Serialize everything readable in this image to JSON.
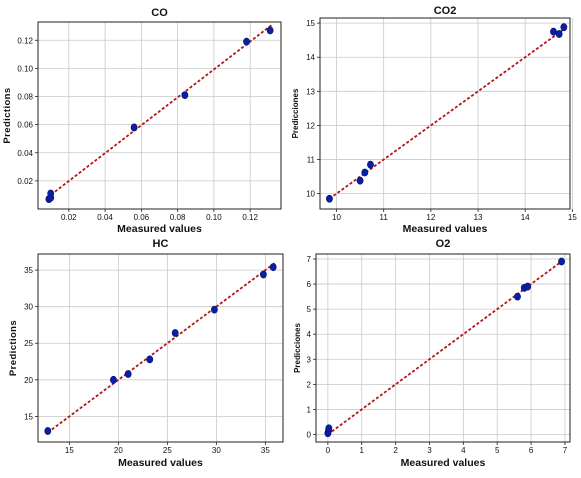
{
  "chart_data": [
    {
      "type": "scatter",
      "title": "CO",
      "xlabel": "Measured values",
      "ylabel": "Predictions",
      "xlim": [
        0.003,
        0.137
      ],
      "ylim": [
        0.0,
        0.133
      ],
      "xticks": [
        0.02,
        0.04,
        0.06,
        0.08,
        0.1,
        0.12
      ],
      "xtick_labels": [
        "0.02",
        "0.04",
        "0.06",
        "0.08",
        "0.10",
        "0.12"
      ],
      "yticks": [
        0.02,
        0.04,
        0.06,
        0.08,
        0.1,
        0.12
      ],
      "ytick_labels": [
        "0.02",
        "0.04",
        "0.06",
        "0.08",
        "0.10",
        "0.12"
      ],
      "grid": true,
      "fit_line": [
        [
          0.008,
          0.008
        ],
        [
          0.132,
          0.131
        ]
      ],
      "points": [
        [
          0.009,
          0.007
        ],
        [
          0.01,
          0.008
        ],
        [
          0.01,
          0.011
        ],
        [
          0.056,
          0.058
        ],
        [
          0.084,
          0.081
        ],
        [
          0.118,
          0.119
        ],
        [
          0.131,
          0.127
        ]
      ]
    },
    {
      "type": "scatter",
      "title": "CO2",
      "xlabel": "Measured values",
      "ylabel": "Predicciones",
      "xlim": [
        9.65,
        14.95
      ],
      "ylim": [
        9.55,
        15.15
      ],
      "xticks": [
        10,
        11,
        12,
        13,
        14,
        15
      ],
      "xtick_labels": [
        "10",
        "11",
        "12",
        "13",
        "14",
        "15"
      ],
      "yticks": [
        10,
        11,
        12,
        13,
        14,
        15
      ],
      "ytick_labels": [
        "10",
        "11",
        "12",
        "13",
        "14",
        "15"
      ],
      "grid": true,
      "fit_line": [
        [
          9.85,
          9.85
        ],
        [
          14.85,
          14.85
        ]
      ],
      "points": [
        [
          9.85,
          9.85
        ],
        [
          10.5,
          10.38
        ],
        [
          10.6,
          10.62
        ],
        [
          10.72,
          10.85
        ],
        [
          14.6,
          14.75
        ],
        [
          14.72,
          14.68
        ],
        [
          14.82,
          14.88
        ]
      ]
    },
    {
      "type": "scatter",
      "title": "HC",
      "xlabel": "Measured values",
      "ylabel": "Predictions",
      "xlim": [
        11.8,
        36.8
      ],
      "ylim": [
        11.5,
        37.2
      ],
      "xticks": [
        15,
        20,
        25,
        30,
        35
      ],
      "xtick_labels": [
        "15",
        "20",
        "25",
        "30",
        "35"
      ],
      "yticks": [
        15,
        20,
        25,
        30,
        35
      ],
      "ytick_labels": [
        "15",
        "20",
        "25",
        "30",
        "35"
      ],
      "grid": true,
      "fit_line": [
        [
          12.8,
          12.8
        ],
        [
          36.0,
          36.0
        ]
      ],
      "points": [
        [
          12.8,
          13.0
        ],
        [
          19.5,
          20.0
        ],
        [
          21.0,
          20.8
        ],
        [
          23.2,
          22.8
        ],
        [
          25.8,
          26.4
        ],
        [
          29.8,
          29.6
        ],
        [
          34.8,
          34.4
        ],
        [
          35.8,
          35.4
        ]
      ]
    },
    {
      "type": "scatter",
      "title": "O2",
      "xlabel": "Measured values",
      "ylabel": "Predicciones",
      "xlim": [
        -0.35,
        7.15
      ],
      "ylim": [
        -0.3,
        7.2
      ],
      "xticks": [
        0,
        1,
        2,
        3,
        4,
        5,
        6,
        7
      ],
      "xtick_labels": [
        "0",
        "1",
        "2",
        "3",
        "4",
        "5",
        "6",
        "7"
      ],
      "yticks": [
        0,
        1,
        2,
        3,
        4,
        5,
        6,
        7
      ],
      "ytick_labels": [
        "0",
        "1",
        "2",
        "3",
        "4",
        "5",
        "6",
        "7"
      ],
      "grid": true,
      "fit_line": [
        [
          0.0,
          0.0
        ],
        [
          6.9,
          6.9
        ]
      ],
      "points": [
        [
          0.0,
          0.05
        ],
        [
          0.02,
          0.15
        ],
        [
          0.03,
          0.25
        ],
        [
          5.6,
          5.5
        ],
        [
          5.8,
          5.85
        ],
        [
          5.9,
          5.9
        ],
        [
          6.9,
          6.9
        ]
      ]
    }
  ],
  "colors": {
    "marker": "#0b1ea8",
    "marker_edge": "#06106a",
    "fit_line": "#b01818",
    "grid": "#c9c9c9",
    "axes": "#222222"
  }
}
